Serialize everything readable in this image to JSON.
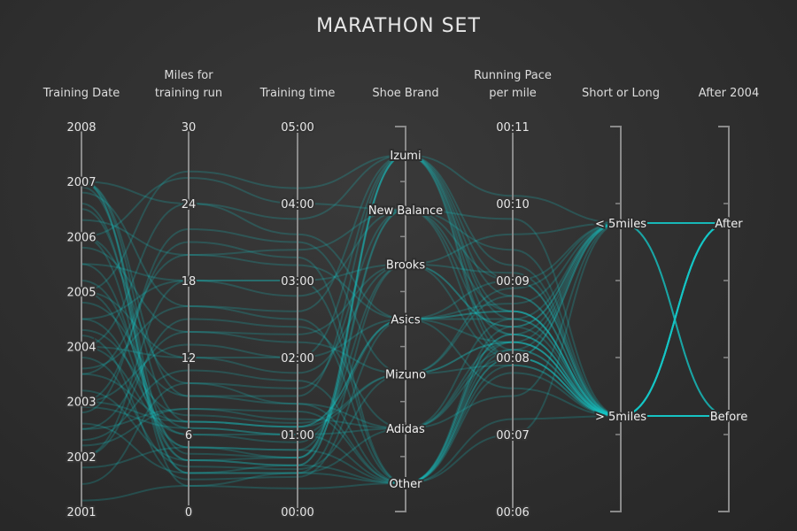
{
  "chart_data": {
    "type": "parallel-coordinates",
    "title": "MARATHON SET",
    "line_color": "#19c9c9",
    "background": "#333333",
    "axes": [
      {
        "key": "date",
        "label": [
          "Training Date"
        ],
        "type": "numeric",
        "range": [
          2001,
          2008
        ],
        "ticks": [
          "2001",
          "2002",
          "2003",
          "2004",
          "2005",
          "2006",
          "2007",
          "2008"
        ],
        "tick_style": "label-on-axis"
      },
      {
        "key": "miles",
        "label": [
          "Miles for",
          "training run"
        ],
        "type": "numeric",
        "range": [
          0,
          30
        ],
        "ticks": [
          "0",
          "6",
          "12",
          "18",
          "24",
          "30"
        ],
        "tick_style": "label-on-axis"
      },
      {
        "key": "time",
        "label": [
          "Training time"
        ],
        "type": "numeric",
        "range": [
          0,
          5
        ],
        "ticks": [
          "00:00",
          "01:00",
          "02:00",
          "03:00",
          "04:00",
          "05:00"
        ],
        "tick_style": "label-on-axis"
      },
      {
        "key": "shoe",
        "label": [
          "Shoe Brand"
        ],
        "type": "categorical",
        "categories": [
          "Other",
          "Adidas",
          "Mizuno",
          "Asics",
          "Brooks",
          "New Balance",
          "Izumi"
        ],
        "range": [
          0,
          7
        ],
        "tick_style": "bracket"
      },
      {
        "key": "pace",
        "label": [
          "Running Pace",
          "per mile"
        ],
        "type": "numeric",
        "range": [
          6,
          11
        ],
        "ticks": [
          "00:06",
          "00:07",
          "00:08",
          "00:09",
          "00:10",
          "00:11"
        ],
        "tick_style": "label-on-axis"
      },
      {
        "key": "length",
        "label": [
          "Short or Long"
        ],
        "type": "categorical",
        "categories": [
          "> 5miles",
          "< 5miles"
        ],
        "range": [
          0,
          2
        ],
        "tick_style": "bracket"
      },
      {
        "key": "after2004",
        "label": [
          "After 2004"
        ],
        "type": "categorical",
        "categories": [
          "Before",
          "After"
        ],
        "range": [
          0,
          2
        ],
        "tick_style": "bracket"
      }
    ],
    "records": [
      [
        2007,
        2,
        0.5,
        0,
        8.2,
        1,
        0
      ],
      [
        2007,
        3,
        0.6,
        6,
        8.1,
        1,
        1
      ],
      [
        2006.5,
        4,
        0.6,
        6,
        8.5,
        1,
        1
      ],
      [
        2006,
        4,
        0.7,
        6,
        8.3,
        1,
        1
      ],
      [
        2005.5,
        5,
        0.7,
        5,
        9.0,
        1,
        1
      ],
      [
        2005,
        5,
        0.8,
        5,
        8.0,
        1,
        1
      ],
      [
        2004.5,
        6,
        0.9,
        4,
        8.4,
        1,
        1
      ],
      [
        2004,
        6,
        1.0,
        3,
        8.6,
        0,
        1
      ],
      [
        2003.5,
        7,
        1.1,
        3,
        7.6,
        0,
        0
      ],
      [
        2003,
        7,
        1.1,
        2,
        8.2,
        0,
        0
      ],
      [
        2002.5,
        8,
        1.2,
        1,
        8.0,
        0,
        0
      ],
      [
        2002.2,
        8,
        1.3,
        0,
        7.8,
        0,
        0
      ],
      [
        2007,
        9,
        1.5,
        6,
        8.0,
        0,
        1
      ],
      [
        2006,
        10,
        1.6,
        5,
        8.3,
        0,
        1
      ],
      [
        2005,
        12,
        2.0,
        6,
        8.6,
        0,
        1
      ],
      [
        2004,
        12,
        1.8,
        4,
        8.0,
        0,
        1
      ],
      [
        2003,
        13,
        2.0,
        3,
        8.2,
        0,
        0
      ],
      [
        2002.5,
        14,
        2.2,
        2,
        7.9,
        0,
        0
      ],
      [
        2002,
        15,
        2.4,
        1,
        8.1,
        0,
        0
      ],
      [
        2006.8,
        16,
        2.6,
        6,
        9.0,
        0,
        1
      ],
      [
        2005.5,
        18,
        2.8,
        5,
        8.6,
        0,
        1
      ],
      [
        2004.5,
        18,
        3.0,
        4,
        8.4,
        0,
        1
      ],
      [
        2003.5,
        20,
        3.2,
        3,
        8.5,
        0,
        0
      ],
      [
        2002.8,
        22,
        3.5,
        2,
        8.2,
        0,
        0
      ],
      [
        2007,
        24,
        3.8,
        6,
        9.2,
        0,
        1
      ],
      [
        2006,
        26,
        4.0,
        5,
        9.4,
        0,
        1
      ],
      [
        2005,
        26.5,
        4.2,
        6,
        8.8,
        0,
        1
      ],
      [
        2004,
        24,
        3.6,
        3,
        8.6,
        0,
        1
      ],
      [
        2003,
        21,
        3.3,
        0,
        7.9,
        0,
        0
      ],
      [
        2002,
        18,
        3.0,
        0,
        8.1,
        0,
        0
      ],
      [
        2001.5,
        10,
        1.4,
        0,
        8.3,
        0,
        0
      ],
      [
        2001.8,
        5,
        0.8,
        0,
        8.4,
        1,
        0
      ],
      [
        2002.6,
        3,
        0.5,
        1,
        7.5,
        1,
        0
      ],
      [
        2003.2,
        4,
        0.6,
        0,
        8.0,
        1,
        0
      ],
      [
        2003.8,
        3.5,
        0.55,
        2,
        8.9,
        1,
        0
      ],
      [
        2004.2,
        2.5,
        0.45,
        3,
        8.7,
        1,
        1
      ],
      [
        2006.6,
        3,
        0.5,
        4,
        9.6,
        1,
        1
      ],
      [
        2006.9,
        4.5,
        0.7,
        6,
        10.1,
        1,
        1
      ],
      [
        2005.2,
        6.5,
        1.0,
        0,
        8.3,
        0,
        1
      ],
      [
        2004.8,
        9,
        1.4,
        1,
        8.2,
        0,
        1
      ],
      [
        2002.3,
        11,
        1.7,
        0,
        7.2,
        0,
        0
      ],
      [
        2003.6,
        16,
        2.5,
        0,
        8.0,
        0,
        0
      ],
      [
        2005.8,
        14,
        2.3,
        4,
        9.1,
        0,
        1
      ],
      [
        2006.3,
        20,
        3.4,
        5,
        9.8,
        0,
        1
      ],
      [
        2004.3,
        7.5,
        1.15,
        2,
        8.8,
        0,
        1
      ],
      [
        2007,
        7,
        1.1,
        3,
        9.0,
        0,
        1
      ],
      [
        2002.9,
        6.5,
        1.0,
        1,
        8.5,
        0,
        0
      ],
      [
        2001.2,
        2,
        0.3,
        0,
        7.0,
        1,
        0
      ]
    ]
  }
}
